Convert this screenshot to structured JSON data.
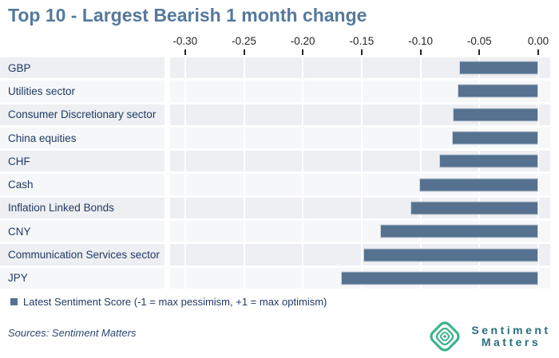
{
  "title": "Top 10 - Largest Bearish 1 month change",
  "chart_data": {
    "type": "bar",
    "orientation": "horizontal",
    "title": "Top 10 - Largest Bearish 1 month change",
    "categories": [
      "GBP",
      "Utilities sector",
      "Consumer Discretionary sector",
      "China equities",
      "CHF",
      "Cash",
      "Inflation Linked Bonds",
      "CNY",
      "Communication Services sector",
      "JPY"
    ],
    "values": [
      -0.066,
      -0.067,
      -0.071,
      -0.072,
      -0.083,
      -0.1,
      -0.107,
      -0.133,
      -0.147,
      -0.166
    ],
    "x_ticks": [
      -0.3,
      -0.25,
      -0.2,
      -0.15,
      -0.1,
      -0.05,
      0.0
    ],
    "x_tick_labels": [
      "-0.30",
      "-0.25",
      "-0.20",
      "-0.15",
      "-0.10",
      "-0.05",
      "0.00"
    ],
    "xlim": [
      -0.313,
      0.005
    ],
    "grid": "vertical-white-on-gray-bands",
    "legend_position": "bottom-left",
    "series_name": "Latest Sentiment Score"
  },
  "legend": {
    "marker": "square-marker",
    "label": "Latest Sentiment Score (-1 = max pessimism, +1 = max optimism)"
  },
  "footer": {
    "sources": "Sources: Sentiment Matters",
    "brand": {
      "icon": "concentric-diamond-logo",
      "line1": "Sentiment",
      "line2": "Matters"
    }
  },
  "colors": {
    "title": "#55799c",
    "bar": "#567290",
    "bar_border": "#c9d2dc",
    "category_label": "#1f3a64",
    "axis_text": "#262626",
    "band_dark": "#edeff2",
    "band_light": "#f6f7f8",
    "logo_green": "#3bb489",
    "logo_text": "#286e7e"
  }
}
